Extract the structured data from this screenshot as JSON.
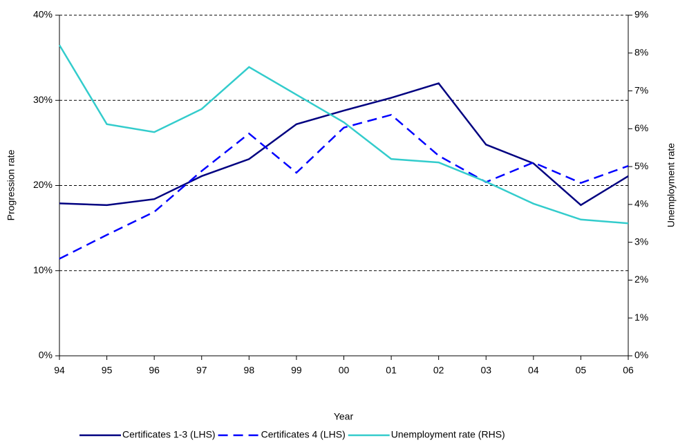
{
  "chart_data": {
    "type": "line",
    "x_label": "Year",
    "y_label": "Progression rate",
    "y2_label": "Unemployment rate",
    "categories": [
      "94",
      "95",
      "96",
      "97",
      "98",
      "99",
      "00",
      "01",
      "02",
      "03",
      "04",
      "05",
      "06"
    ],
    "ylim": [
      0,
      40
    ],
    "yticks": [
      {
        "value": 0,
        "label": "0%"
      },
      {
        "value": 10,
        "label": "10%"
      },
      {
        "value": 20,
        "label": "20%"
      },
      {
        "value": 30,
        "label": "30%"
      },
      {
        "value": 40,
        "label": "40%"
      }
    ],
    "y2lim": [
      0,
      9
    ],
    "y2ticks": [
      {
        "value": 0,
        "label": "0%"
      },
      {
        "value": 1,
        "label": "1%"
      },
      {
        "value": 2,
        "label": "2%"
      },
      {
        "value": 3,
        "label": "3%"
      },
      {
        "value": 4,
        "label": "4%"
      },
      {
        "value": 5,
        "label": "5%"
      },
      {
        "value": 6,
        "label": "6%"
      },
      {
        "value": 7,
        "label": "7%"
      },
      {
        "value": 8,
        "label": "8%"
      },
      {
        "value": 9,
        "label": "9%"
      }
    ],
    "grid": true,
    "legend": "bottom",
    "series": [
      {
        "name": "Certificates 1-3 (LHS)",
        "color": "#000080",
        "style": "solid",
        "values": [
          17.9,
          17.7,
          18.4,
          21.1,
          23.1,
          27.2,
          28.8,
          30.3,
          32.0,
          24.8,
          22.6,
          17.7,
          21.1
        ]
      },
      {
        "name": "Certificates 4 (LHS)",
        "color": "#0000ff",
        "style": "dashed",
        "values": [
          11.4,
          14.2,
          16.9,
          21.7,
          26.1,
          21.5,
          26.8,
          28.3,
          23.5,
          20.4,
          22.7,
          20.3,
          22.3
        ]
      },
      {
        "name": "Unemployment rate (RHS)",
        "color": "#33cccc",
        "style": "solid",
        "axis": "y2",
        "values": [
          8.21,
          6.12,
          5.91,
          6.52,
          7.63,
          6.9,
          6.17,
          5.2,
          5.11,
          4.6,
          4.02,
          3.6,
          3.5
        ]
      }
    ]
  }
}
